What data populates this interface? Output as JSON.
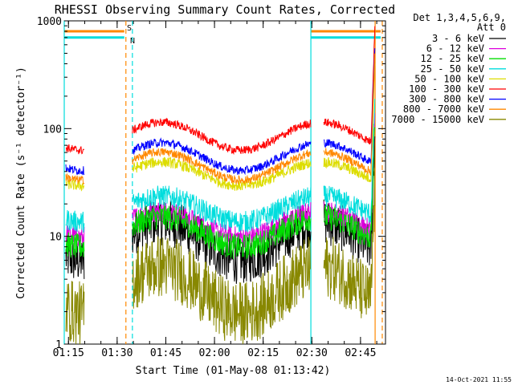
{
  "chart_data": {
    "type": "line",
    "title": "RHESSI Observing Summary Count Rates, Corrected",
    "xlabel": "Start Time (01-May-08 01:13:42)",
    "ylabel": "Corrected Count Rate (s⁻¹ detector⁻¹)",
    "yscale": "log",
    "ylim": [
      1,
      1000
    ],
    "xlim_minutes": [
      0,
      99
    ],
    "x_ticks": [
      {
        "label": "01:15",
        "minute": 1.3
      },
      {
        "label": "01:30",
        "minute": 16.3
      },
      {
        "label": "01:45",
        "minute": 31.3
      },
      {
        "label": "02:00",
        "minute": 46.3
      },
      {
        "label": "02:15",
        "minute": 61.3
      },
      {
        "label": "02:30",
        "minute": 76.3
      },
      {
        "label": "02:45",
        "minute": 91.3
      }
    ],
    "y_ticks": [
      {
        "label": "1",
        "value": 1
      },
      {
        "label": "10",
        "value": 10
      },
      {
        "label": "100",
        "value": 100
      },
      {
        "label": "1000",
        "value": 1000
      }
    ],
    "legend_header": [
      "Det 1,3,4,5,6,9,",
      "Att 0"
    ],
    "legend_position": "right",
    "series": [
      {
        "name": "3 - 6 keV",
        "color": "#000000",
        "base": 9.0,
        "amp": 0.18,
        "noise": 0.22
      },
      {
        "name": "6 - 12 keV",
        "color": "#dd00dd",
        "base": 13.0,
        "amp": 0.12,
        "noise": 0.1
      },
      {
        "name": "12 - 25 keV",
        "color": "#00dd00",
        "base": 11.0,
        "amp": 0.14,
        "noise": 0.12
      },
      {
        "name": "25 - 50 keV",
        "color": "#00dddd",
        "base": 18.0,
        "amp": 0.12,
        "noise": 0.1
      },
      {
        "name": "50 - 100 keV",
        "color": "#dddd00",
        "base": 38.0,
        "amp": 0.11,
        "noise": 0.05
      },
      {
        "name": "100 - 300 keV",
        "color": "#ff0000",
        "base": 85.0,
        "amp": 0.13,
        "noise": 0.04
      },
      {
        "name": "300 - 800 keV",
        "color": "#0000ff",
        "base": 55.0,
        "amp": 0.13,
        "noise": 0.04
      },
      {
        "name": "800 - 7000 keV",
        "color": "#ff8800",
        "base": 45.0,
        "amp": 0.13,
        "noise": 0.04
      },
      {
        "name": "7000 - 15000 keV",
        "color": "#888800",
        "base": 3.2,
        "amp": 0.22,
        "noise": 0.3
      }
    ],
    "data_segments_minutes": [
      [
        0.5,
        6.2
      ],
      [
        21.0,
        76.0
      ],
      [
        80.0,
        95.8
      ]
    ],
    "attenuator_bars": [
      {
        "label": "S",
        "color": "#ff8800",
        "value": 800
      },
      {
        "label": "N",
        "color": "#00dddd",
        "value": 700
      }
    ],
    "event_lines_minutes": [
      {
        "color": "#00dddd",
        "minute": 0.0,
        "style": "solid"
      },
      {
        "color": "#ff8800",
        "minute": 19.0,
        "style": "dashed"
      },
      {
        "color": "#00dddd",
        "minute": 21.0,
        "style": "dashed"
      },
      {
        "color": "#00dddd",
        "minute": 76.0,
        "style": "solid"
      },
      {
        "color": "#ff8800",
        "minute": 95.8,
        "style": "solid"
      },
      {
        "color": "#ff8800",
        "minute": 98.0,
        "style": "dashed"
      }
    ]
  },
  "footer": {
    "timestamp": "14-Oct-2021 11:55"
  }
}
